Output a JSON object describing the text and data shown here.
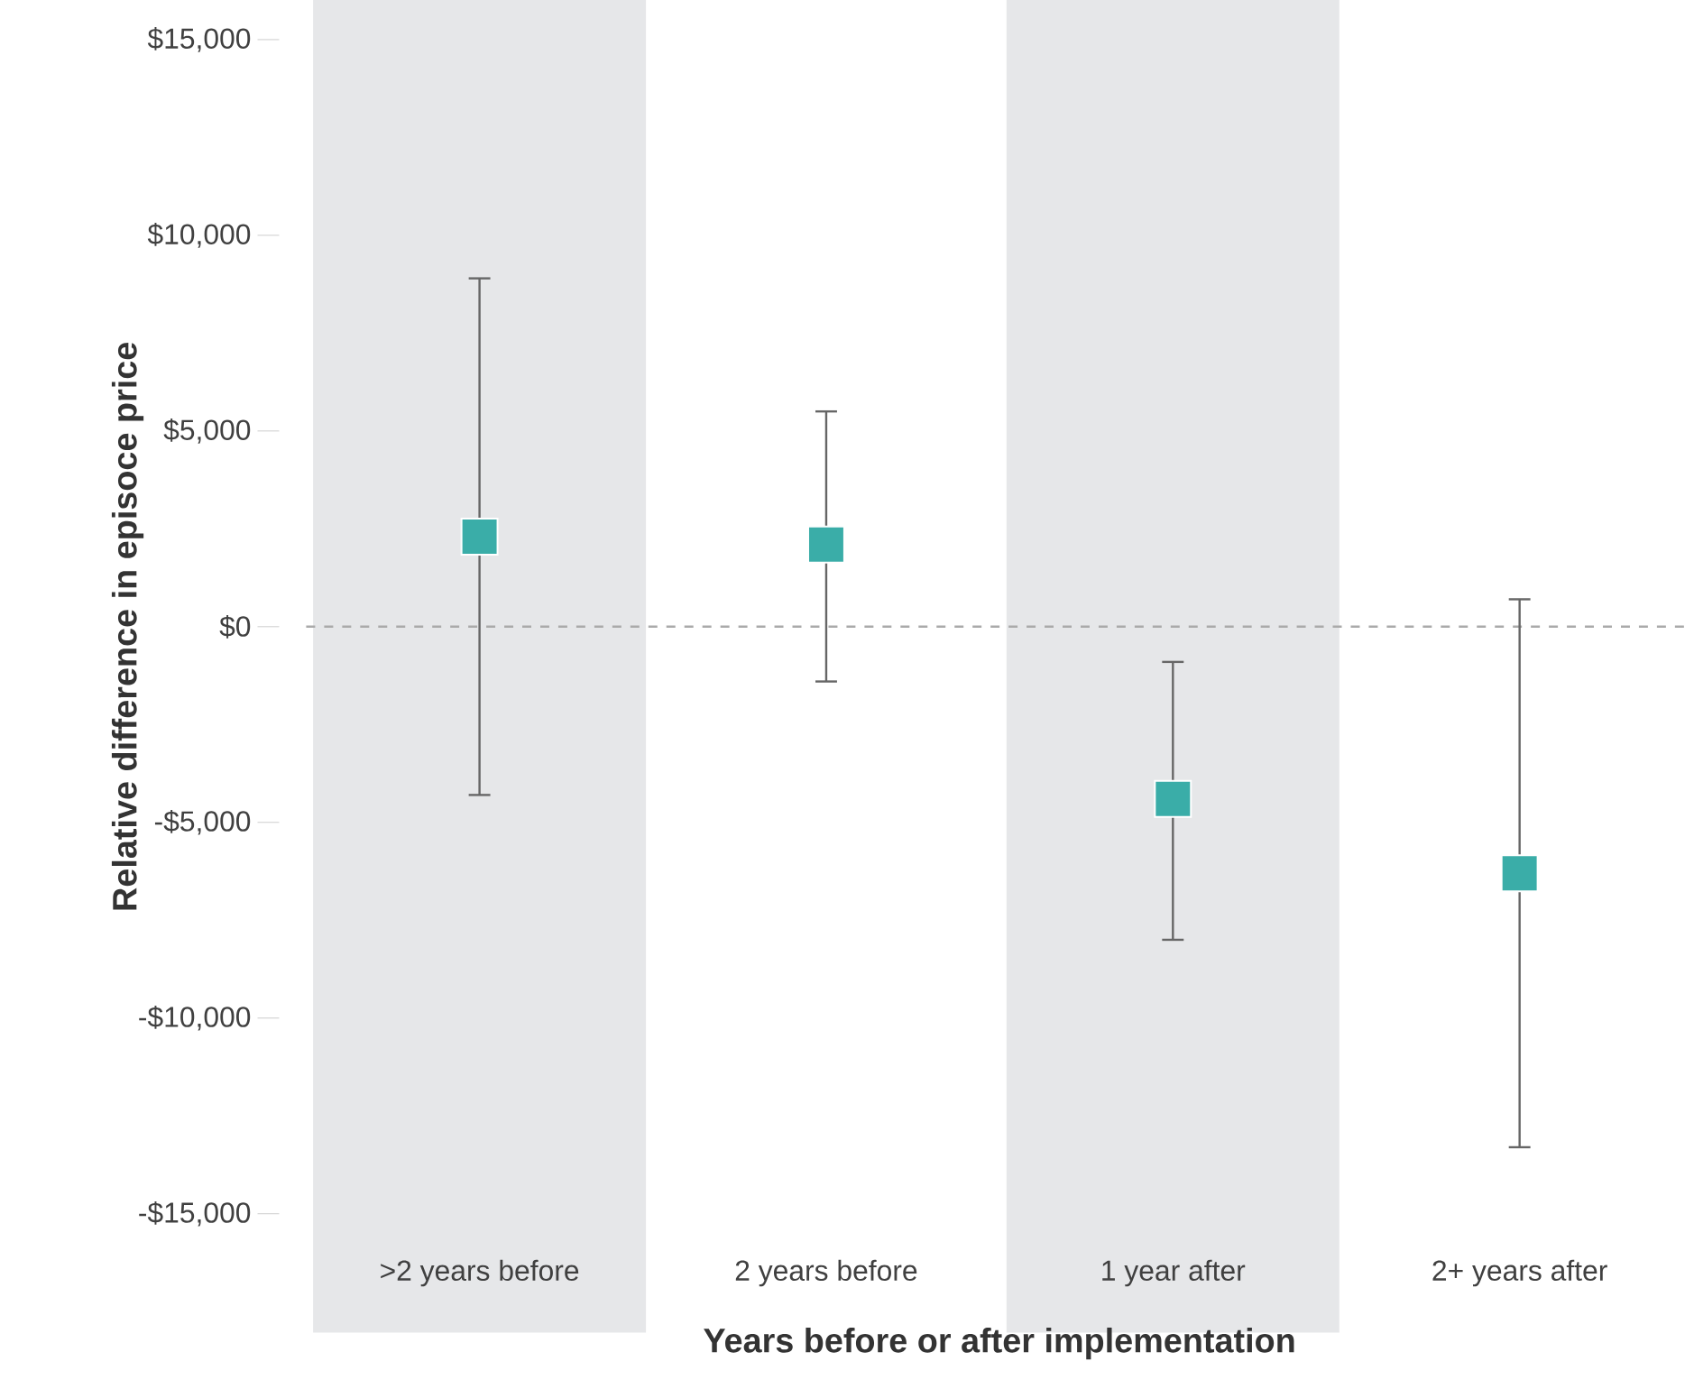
{
  "chart_data": {
    "type": "scatter",
    "xlabel": "Years before or after implementation",
    "ylabel": "Relative difference in episoce price",
    "categories": [
      ">2 years before",
      "2 years before",
      "1 year after",
      "2+ years after"
    ],
    "values": [
      2300,
      2100,
      -4400,
      -6300
    ],
    "errors": [
      [
        -4300,
        8900
      ],
      [
        -1400,
        5500
      ],
      [
        -8000,
        -900
      ],
      [
        -13300,
        700
      ]
    ],
    "color": "#3aada8",
    "marker": "square",
    "ylim": [
      -15000,
      15000
    ],
    "yticks": [
      {
        "value": 15000,
        "label": "$15,000"
      },
      {
        "value": 10000,
        "label": "$10,000"
      },
      {
        "value": 5000,
        "label": "$5,000"
      },
      {
        "value": 0,
        "label": "$0"
      },
      {
        "value": -5000,
        "label": "-$5,000"
      },
      {
        "value": -10000,
        "label": "-$10,000"
      },
      {
        "value": -15000,
        "label": "-$15,000"
      }
    ],
    "ref_lines": [
      {
        "axis": "y",
        "value": 0,
        "color": "#aaaaaa",
        "line_style": "dashed"
      }
    ],
    "bands": [
      {
        "axis": "x",
        "from": ">2 years before",
        "to": ">2 years before",
        "color": "#e6e7e9"
      },
      {
        "axis": "x",
        "from": "1 year after",
        "to": "1 year after",
        "color": "#e6e7e9"
      }
    ]
  }
}
